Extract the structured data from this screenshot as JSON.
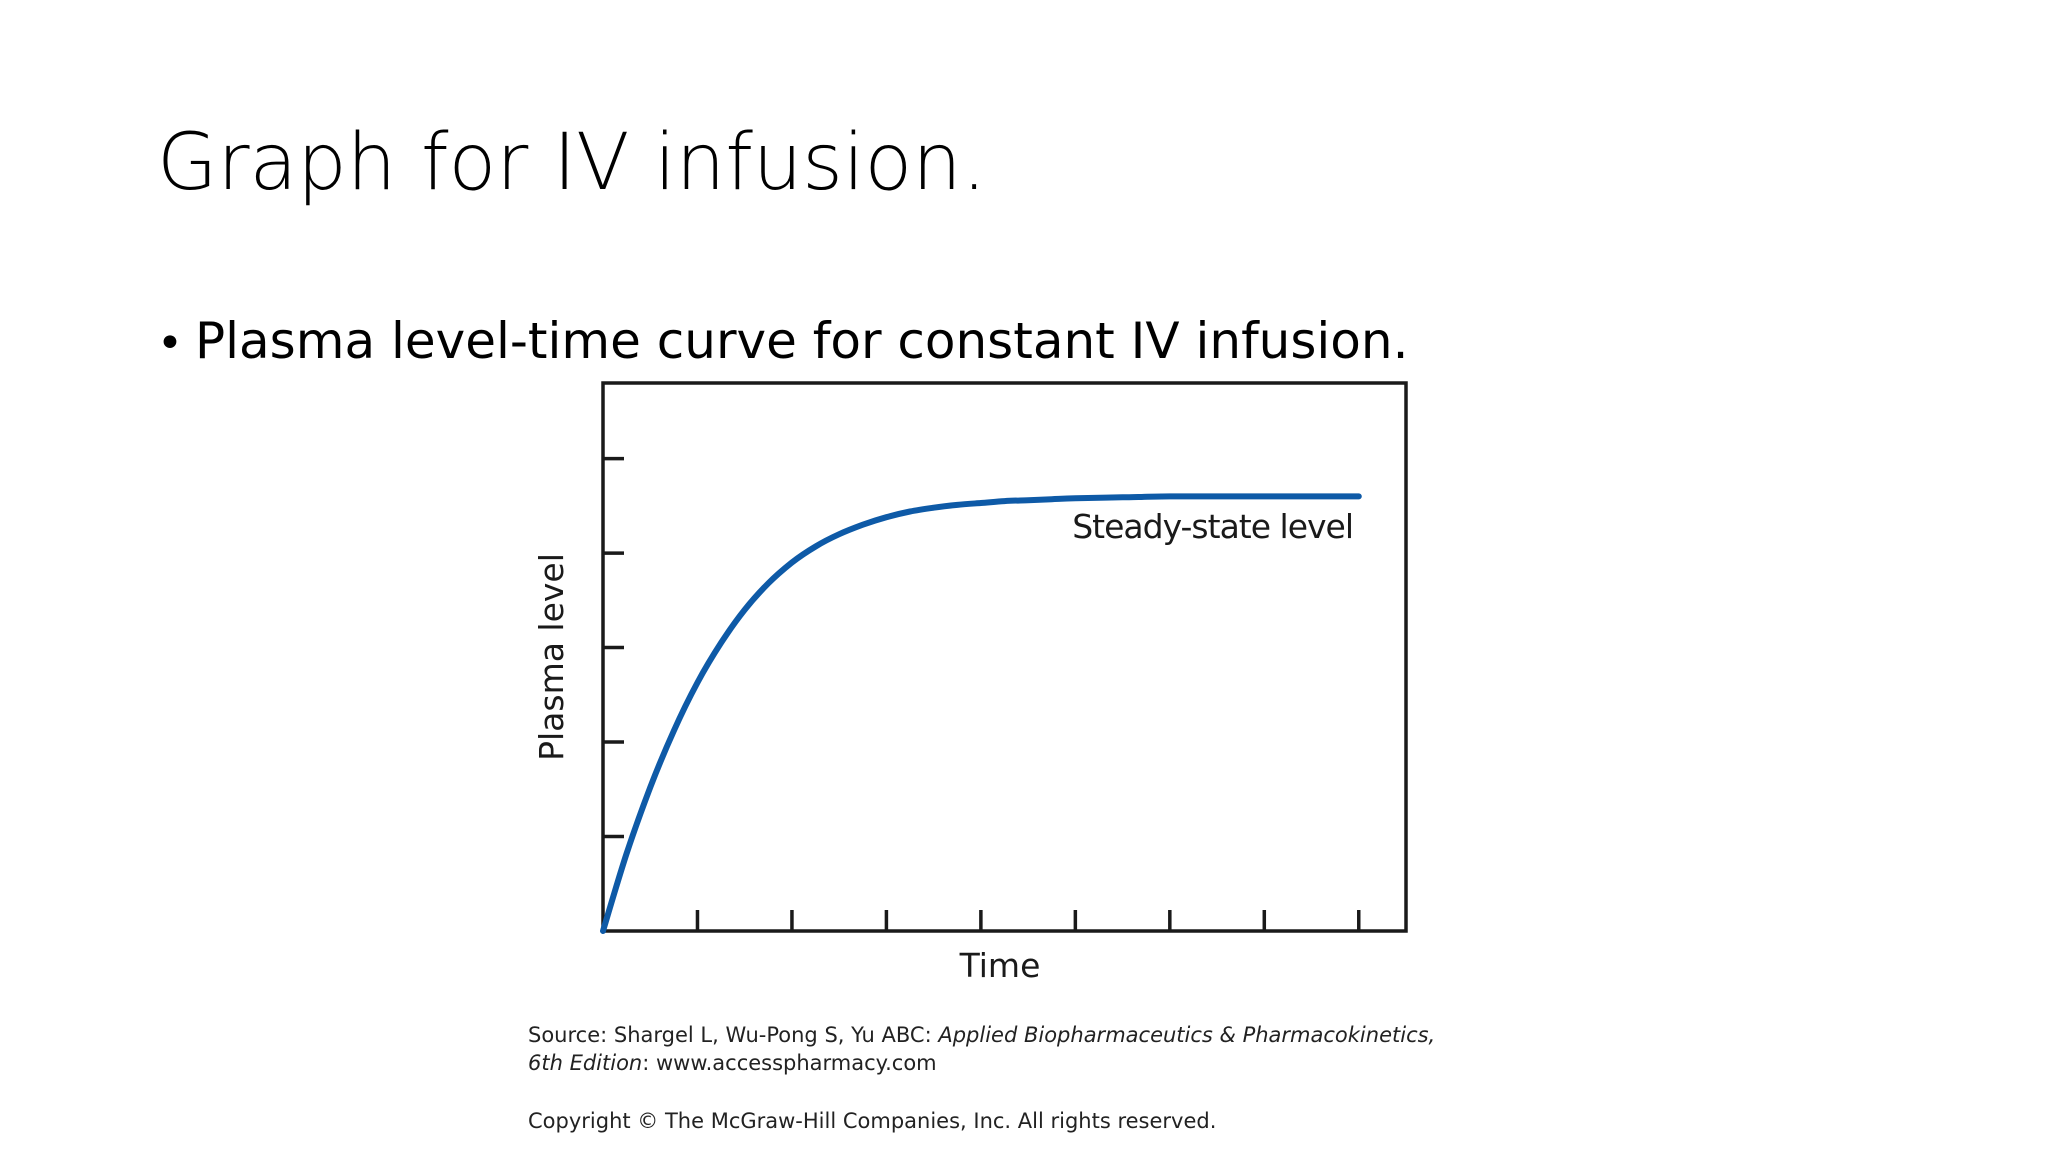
{
  "slide": {
    "title": "Graph for IV infusion.",
    "bullet": "Plasma level-time curve for constant IV infusion."
  },
  "chart_data": {
    "type": "line",
    "xlabel": "Time",
    "ylabel": "Plasma level",
    "annotation": "Steady-state level",
    "x_ticks": 8,
    "y_ticks": 5,
    "xlim": [
      0,
      8.5
    ],
    "ylim": [
      0,
      5.8
    ],
    "series": [
      {
        "x": [
          0,
          0.25,
          0.5,
          0.75,
          1,
          1.25,
          1.5,
          1.75,
          2,
          2.25,
          2.5,
          2.75,
          3,
          3.25,
          3.5,
          3.75,
          4,
          4.25,
          4.5,
          4.75,
          5,
          5.5,
          6,
          6.5,
          7,
          7.5,
          8
        ],
        "y": [
          0,
          0.82,
          1.52,
          2.12,
          2.63,
          3.05,
          3.4,
          3.68,
          3.9,
          4.07,
          4.2,
          4.3,
          4.38,
          4.44,
          4.48,
          4.51,
          4.53,
          4.55,
          4.56,
          4.57,
          4.58,
          4.59,
          4.6,
          4.6,
          4.6,
          4.6,
          4.6
        ]
      }
    ],
    "line_color": "#0e5aa7",
    "grid": false
  },
  "source": {
    "prefix": "Source: Shargel L, Wu-Pong S, Yu ABC: ",
    "book": "Applied Biopharmaceutics & Pharmacokinetics,",
    "edition": "6th Edition",
    "suffix": ": www.accesspharmacy.com",
    "copyright": "Copyright © The McGraw-Hill Companies, Inc. All rights reserved."
  }
}
